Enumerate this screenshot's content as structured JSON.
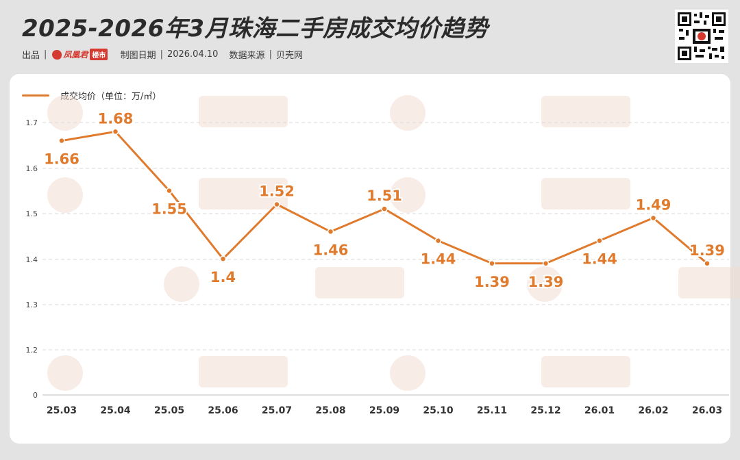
{
  "header": {
    "title": "2025-2026年3月珠海二手房成交均价趋势",
    "producer_label": "出品",
    "brand_name": "凤凰君",
    "brand_tag": "楼市",
    "date_label": "制图日期",
    "date_value": "2026.04.10",
    "source_label": "数据来源",
    "source_value": "贝壳网"
  },
  "chart_data": {
    "type": "line",
    "categories": [
      "25.03",
      "25.04",
      "25.05",
      "25.06",
      "25.07",
      "25.08",
      "25.09",
      "25.10",
      "25.11",
      "25.12",
      "26.01",
      "26.02",
      "26.03"
    ],
    "series": [
      {
        "name": "成交均价（单位：万/㎡）",
        "values": [
          1.66,
          1.68,
          1.55,
          1.4,
          1.52,
          1.46,
          1.51,
          1.44,
          1.39,
          1.39,
          1.44,
          1.49,
          1.39
        ]
      }
    ],
    "yticks": [
      "0",
      "1.2",
      "1.3",
      "1.4",
      "1.5",
      "1.6",
      "1.7"
    ],
    "color": "#e07b2e",
    "grid": true,
    "legend_position": "top-left"
  }
}
